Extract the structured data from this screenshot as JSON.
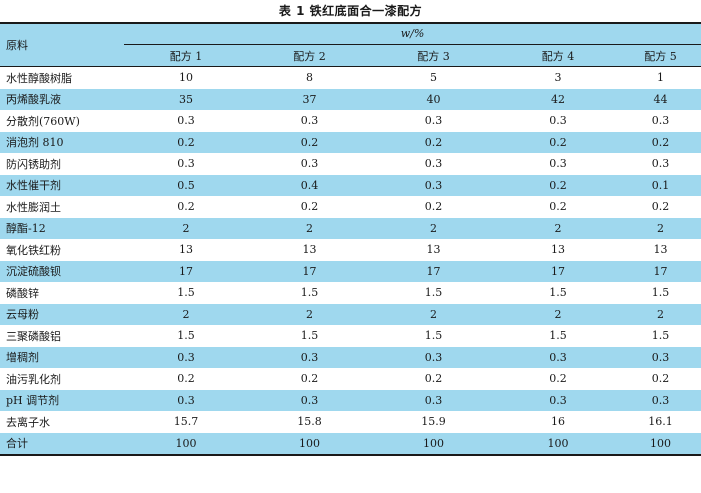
{
  "caption": "表 1 铁红底面合一漆配方",
  "header": {
    "row_label": "原料",
    "unit_label": "w/%",
    "columns": [
      "配方 1",
      "配方 2",
      "配方 3",
      "配方 4",
      "配方 5"
    ]
  },
  "rows": [
    {
      "name": "水性醇酸树脂",
      "values": [
        "10",
        "8",
        "5",
        "3",
        "1"
      ]
    },
    {
      "name": "丙烯酸乳液",
      "values": [
        "35",
        "37",
        "40",
        "42",
        "44"
      ]
    },
    {
      "name": "分散剂(760W)",
      "values": [
        "0.3",
        "0.3",
        "0.3",
        "0.3",
        "0.3"
      ]
    },
    {
      "name": "消泡剂 810",
      "values": [
        "0.2",
        "0.2",
        "0.2",
        "0.2",
        "0.2"
      ]
    },
    {
      "name": "防闪锈助剂",
      "values": [
        "0.3",
        "0.3",
        "0.3",
        "0.3",
        "0.3"
      ]
    },
    {
      "name": "水性催干剂",
      "values": [
        "0.5",
        "0.4",
        "0.3",
        "0.2",
        "0.1"
      ]
    },
    {
      "name": "水性膨润土",
      "values": [
        "0.2",
        "0.2",
        "0.2",
        "0.2",
        "0.2"
      ]
    },
    {
      "name": "醇酯-12",
      "values": [
        "2",
        "2",
        "2",
        "2",
        "2"
      ]
    },
    {
      "name": "氧化铁红粉",
      "values": [
        "13",
        "13",
        "13",
        "13",
        "13"
      ]
    },
    {
      "name": "沉淀硫酸钡",
      "values": [
        "17",
        "17",
        "17",
        "17",
        "17"
      ]
    },
    {
      "name": "磷酸锌",
      "values": [
        "1.5",
        "1.5",
        "1.5",
        "1.5",
        "1.5"
      ]
    },
    {
      "name": "云母粉",
      "values": [
        "2",
        "2",
        "2",
        "2",
        "2"
      ]
    },
    {
      "name": "三聚磷酸铝",
      "values": [
        "1.5",
        "1.5",
        "1.5",
        "1.5",
        "1.5"
      ]
    },
    {
      "name": "增稠剂",
      "values": [
        "0.3",
        "0.3",
        "0.3",
        "0.3",
        "0.3"
      ]
    },
    {
      "name": "油污乳化剂",
      "values": [
        "0.2",
        "0.2",
        "0.2",
        "0.2",
        "0.2"
      ]
    },
    {
      "name": "pH 调节剂",
      "values": [
        "0.3",
        "0.3",
        "0.3",
        "0.3",
        "0.3"
      ]
    },
    {
      "name": "去离子水",
      "values": [
        "15.7",
        "15.8",
        "15.9",
        "16",
        "16.1"
      ]
    },
    {
      "name": "合计",
      "values": [
        "100",
        "100",
        "100",
        "100",
        "100"
      ]
    }
  ],
  "colors": {
    "row_shade": "#9fd8ee",
    "rule": "#1a1a1a"
  }
}
